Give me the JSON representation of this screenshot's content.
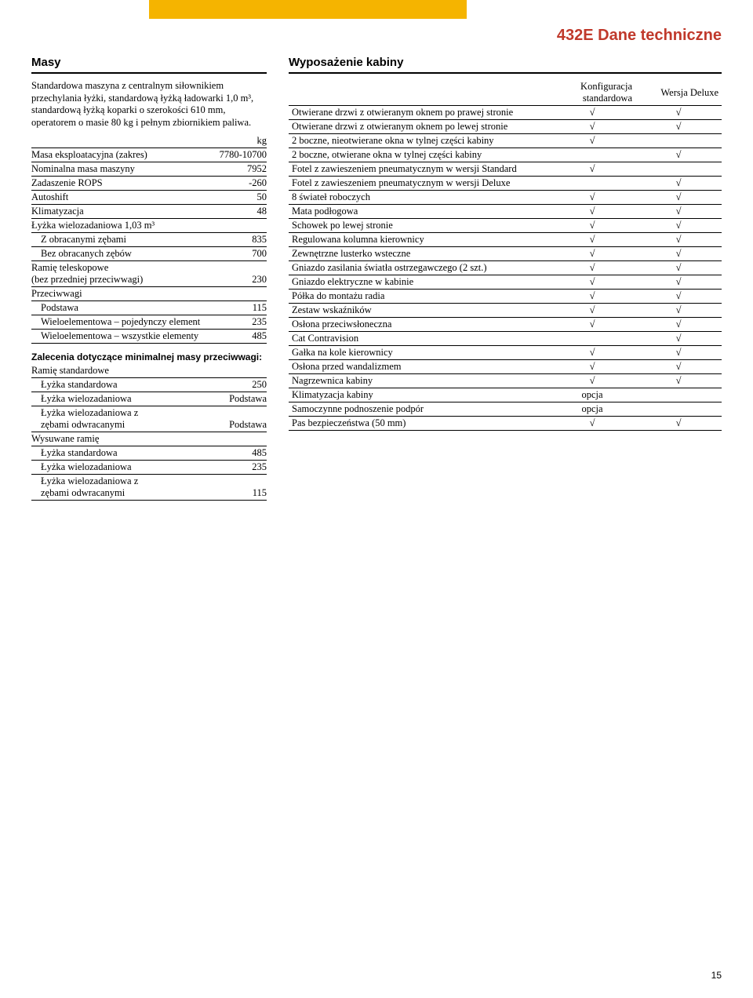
{
  "page": {
    "title": "432E Dane techniczne",
    "number": "15"
  },
  "left": {
    "heading": "Masy",
    "intro": "Standardowa maszyna z centralnym siłownikiem przechylania łyżki, standardową łyżką ładowarki 1,0 m³, standardową łyżką koparki o szerokości 610 mm, operatorem o masie 80 kg i pełnym zbiornikiem paliwa.",
    "unit": "kg",
    "rows1": [
      {
        "l": "Masa eksploatacyjna (zakres)",
        "v": "7780-10700",
        "i": 0
      },
      {
        "l": "Nominalna masa maszyny",
        "v": "7952",
        "i": 0
      },
      {
        "l": "Zadaszenie ROPS",
        "v": "-260",
        "i": 0
      },
      {
        "l": "Autoshift",
        "v": "50",
        "i": 0
      },
      {
        "l": "Klimatyzacja",
        "v": "48",
        "i": 0
      },
      {
        "l": "Łyżka wielozadaniowa 1,03 m³",
        "v": "",
        "i": 0
      },
      {
        "l": "Z obracanymi zębami",
        "v": "835",
        "i": 1
      },
      {
        "l": "Bez obracanych zębów",
        "v": "700",
        "i": 1
      },
      {
        "l": "Ramię teleskopowe\n(bez przedniej przeciwwagi)",
        "v": "230",
        "i": 0
      },
      {
        "l": "Przeciwwagi",
        "v": "",
        "i": 0
      },
      {
        "l": "Podstawa",
        "v": "115",
        "i": 1
      },
      {
        "l": "Wieloelementowa – pojedynczy element",
        "v": "235",
        "i": 1
      },
      {
        "l": "Wieloelementowa – wszystkie elementy",
        "v": "485",
        "i": 1
      }
    ],
    "sub_h": "Zalecenia dotyczące minimalnej masy przeciwwagi:",
    "rows2": [
      {
        "l": "Ramię standardowe",
        "v": "",
        "i": 0
      },
      {
        "l": "Łyżka standardowa",
        "v": "250",
        "i": 1
      },
      {
        "l": "Łyżka wielozadaniowa",
        "v": "Podstawa",
        "i": 1
      },
      {
        "l": "Łyżka wielozadaniowa z\nzębami odwracanymi",
        "v": "Podstawa",
        "i": 1
      },
      {
        "l": "Wysuwane ramię",
        "v": "",
        "i": 0
      },
      {
        "l": "Łyżka standardowa",
        "v": "485",
        "i": 1
      },
      {
        "l": "Łyżka wielozadaniowa",
        "v": "235",
        "i": 1
      },
      {
        "l": "Łyżka wielozadaniowa z\nzębami odwracanymi",
        "v": "115",
        "i": 1
      }
    ]
  },
  "right": {
    "heading": "Wyposażenie kabiny",
    "col1": "Konfiguracja standardowa",
    "col2": "Wersja Deluxe",
    "rows": [
      {
        "l": "Otwierane drzwi z otwieranym oknem po prawej stronie",
        "a": "√",
        "b": "√"
      },
      {
        "l": "Otwierane drzwi z otwieranym oknem po lewej stronie",
        "a": "√",
        "b": "√"
      },
      {
        "l": "2 boczne, nieotwierane okna w tylnej części kabiny",
        "a": "√",
        "b": ""
      },
      {
        "l": "2 boczne, otwierane okna w tylnej części kabiny",
        "a": "",
        "b": "√"
      },
      {
        "l": "Fotel z zawieszeniem pneumatycznym w wersji Standard",
        "a": "√",
        "b": ""
      },
      {
        "l": "Fotel z zawieszeniem pneumatycznym w wersji Deluxe",
        "a": "",
        "b": "√"
      },
      {
        "l": "8 świateł roboczych",
        "a": "√",
        "b": "√"
      },
      {
        "l": "Mata podłogowa",
        "a": "√",
        "b": "√"
      },
      {
        "l": "Schowek po lewej stronie",
        "a": "√",
        "b": "√"
      },
      {
        "l": "Regulowana kolumna kierownicy",
        "a": "√",
        "b": "√"
      },
      {
        "l": "Zewnętrzne lusterko wsteczne",
        "a": "√",
        "b": "√"
      },
      {
        "l": "Gniazdo zasilania światła ostrzegawczego (2 szt.)",
        "a": "√",
        "b": "√"
      },
      {
        "l": "Gniazdo elektryczne w kabinie",
        "a": "√",
        "b": "√"
      },
      {
        "l": "Półka do montażu radia",
        "a": "√",
        "b": "√"
      },
      {
        "l": "Zestaw wskaźników",
        "a": "√",
        "b": "√"
      },
      {
        "l": "Osłona przeciwsłoneczna",
        "a": "√",
        "b": "√"
      },
      {
        "l": "Cat Contravision",
        "a": "",
        "b": "√"
      },
      {
        "l": "Gałka na kole kierownicy",
        "a": "√",
        "b": "√"
      },
      {
        "l": "Osłona przed wandalizmem",
        "a": "√",
        "b": "√"
      },
      {
        "l": "Nagrzewnica kabiny",
        "a": "√",
        "b": "√"
      },
      {
        "l": "Klimatyzacja kabiny",
        "a": "opcja",
        "b": ""
      },
      {
        "l": "Samoczynne podnoszenie podpór",
        "a": "opcja",
        "b": ""
      },
      {
        "l": "Pas bezpieczeństwa (50 mm)",
        "a": "√",
        "b": "√"
      }
    ]
  }
}
